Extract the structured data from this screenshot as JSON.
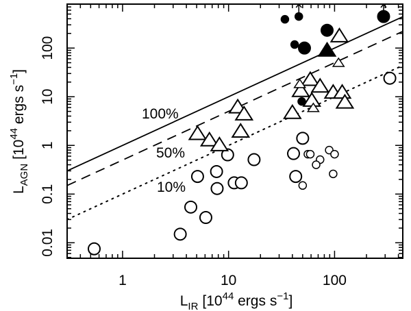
{
  "chart_data": {
    "type": "scatter",
    "title": "",
    "xscale": "log",
    "yscale": "log",
    "xlim": [
      0.3,
      440
    ],
    "ylim": [
      0.0048,
      800
    ],
    "xticks": [
      {
        "value": 1,
        "label": "1"
      },
      {
        "value": 10,
        "label": "10"
      },
      {
        "value": 100,
        "label": "100"
      }
    ],
    "yticks": [
      {
        "value": 0.01,
        "label": "0.01"
      },
      {
        "value": 0.1,
        "label": "0.1"
      },
      {
        "value": 1,
        "label": "1"
      },
      {
        "value": 10,
        "label": "10"
      },
      {
        "value": 100,
        "label": "100"
      }
    ],
    "xlabel": {
      "main": "L",
      "sub": "IR",
      "pre": "[10",
      "sup": "44",
      "mid": " ergs s",
      "sup2": "−1",
      "post": "]"
    },
    "ylabel": {
      "main": "L",
      "sub": "AGN",
      "pre": "[10",
      "sup": "44",
      "mid": " ergs s",
      "sup2": "−1",
      "post": "]"
    },
    "grid": false,
    "reference_lines": [
      {
        "name": "100%",
        "label": "100%",
        "fraction": 1.0,
        "style": "solid"
      },
      {
        "name": "50%",
        "label": "50%",
        "fraction": 0.5,
        "style": "dashed"
      },
      {
        "name": "10%",
        "label": "10%",
        "fraction": 0.1,
        "style": "dotted"
      }
    ],
    "series": [
      {
        "name": "open-circles-large",
        "marker": "circle",
        "filled": false,
        "size": "large",
        "points": [
          [
            0.54,
            0.0075
          ],
          [
            3.5,
            0.015
          ],
          [
            4.4,
            0.054
          ],
          [
            6.1,
            0.033
          ],
          [
            5.1,
            0.23
          ],
          [
            7.7,
            0.29
          ],
          [
            7.8,
            0.13
          ],
          [
            11.3,
            0.17
          ],
          [
            13.2,
            0.17
          ],
          [
            9.8,
            0.64
          ],
          [
            17.4,
            0.51
          ],
          [
            41,
            0.68
          ],
          [
            43,
            0.23
          ],
          [
            50,
            1.4
          ],
          [
            332,
            24
          ]
        ]
      },
      {
        "name": "open-circles-small",
        "marker": "circle",
        "filled": false,
        "size": "small",
        "points": [
          [
            56,
            0.66
          ],
          [
            59,
            0.66
          ],
          [
            73,
            0.51
          ],
          [
            67,
            0.4
          ],
          [
            89,
            0.8
          ],
          [
            100,
            0.66
          ],
          [
            97,
            0.26
          ],
          [
            50,
            0.15
          ]
        ]
      },
      {
        "name": "open-triangles-large",
        "marker": "triangle",
        "filled": false,
        "size": "large",
        "points": [
          [
            5.1,
            1.7
          ],
          [
            6.6,
            1.26
          ],
          [
            8.2,
            1.0
          ],
          [
            12.2,
            6.0
          ],
          [
            14.0,
            4.3
          ],
          [
            13.0,
            1.9
          ],
          [
            40,
            4.6
          ],
          [
            59,
            22
          ],
          [
            48,
            13
          ],
          [
            73,
            16
          ],
          [
            97,
            12
          ],
          [
            118,
            12
          ],
          [
            61,
            8.2
          ],
          [
            125,
            7.5
          ],
          [
            111,
            173
          ]
        ]
      },
      {
        "name": "open-triangles-small",
        "marker": "triangle",
        "filled": false,
        "size": "small",
        "points": [
          [
            47,
            18
          ],
          [
            63,
            5.8
          ],
          [
            109,
            49
          ]
        ]
      },
      {
        "name": "filled-circles-small",
        "marker": "circle",
        "filled": true,
        "size": "small",
        "points": [
          [
            34,
            390
          ],
          [
            46,
            445,
            "lower-limit"
          ],
          [
            42,
            118
          ],
          [
            49,
            8.0
          ]
        ]
      },
      {
        "name": "filled-circles-large",
        "marker": "circle",
        "filled": true,
        "size": "large",
        "points": [
          [
            52,
            100
          ],
          [
            85,
            232
          ],
          [
            290,
            445,
            "lower-limit"
          ]
        ]
      },
      {
        "name": "filled-triangles-large",
        "marker": "triangle",
        "filled": true,
        "size": "large",
        "points": [
          [
            85,
            88
          ]
        ]
      }
    ]
  }
}
